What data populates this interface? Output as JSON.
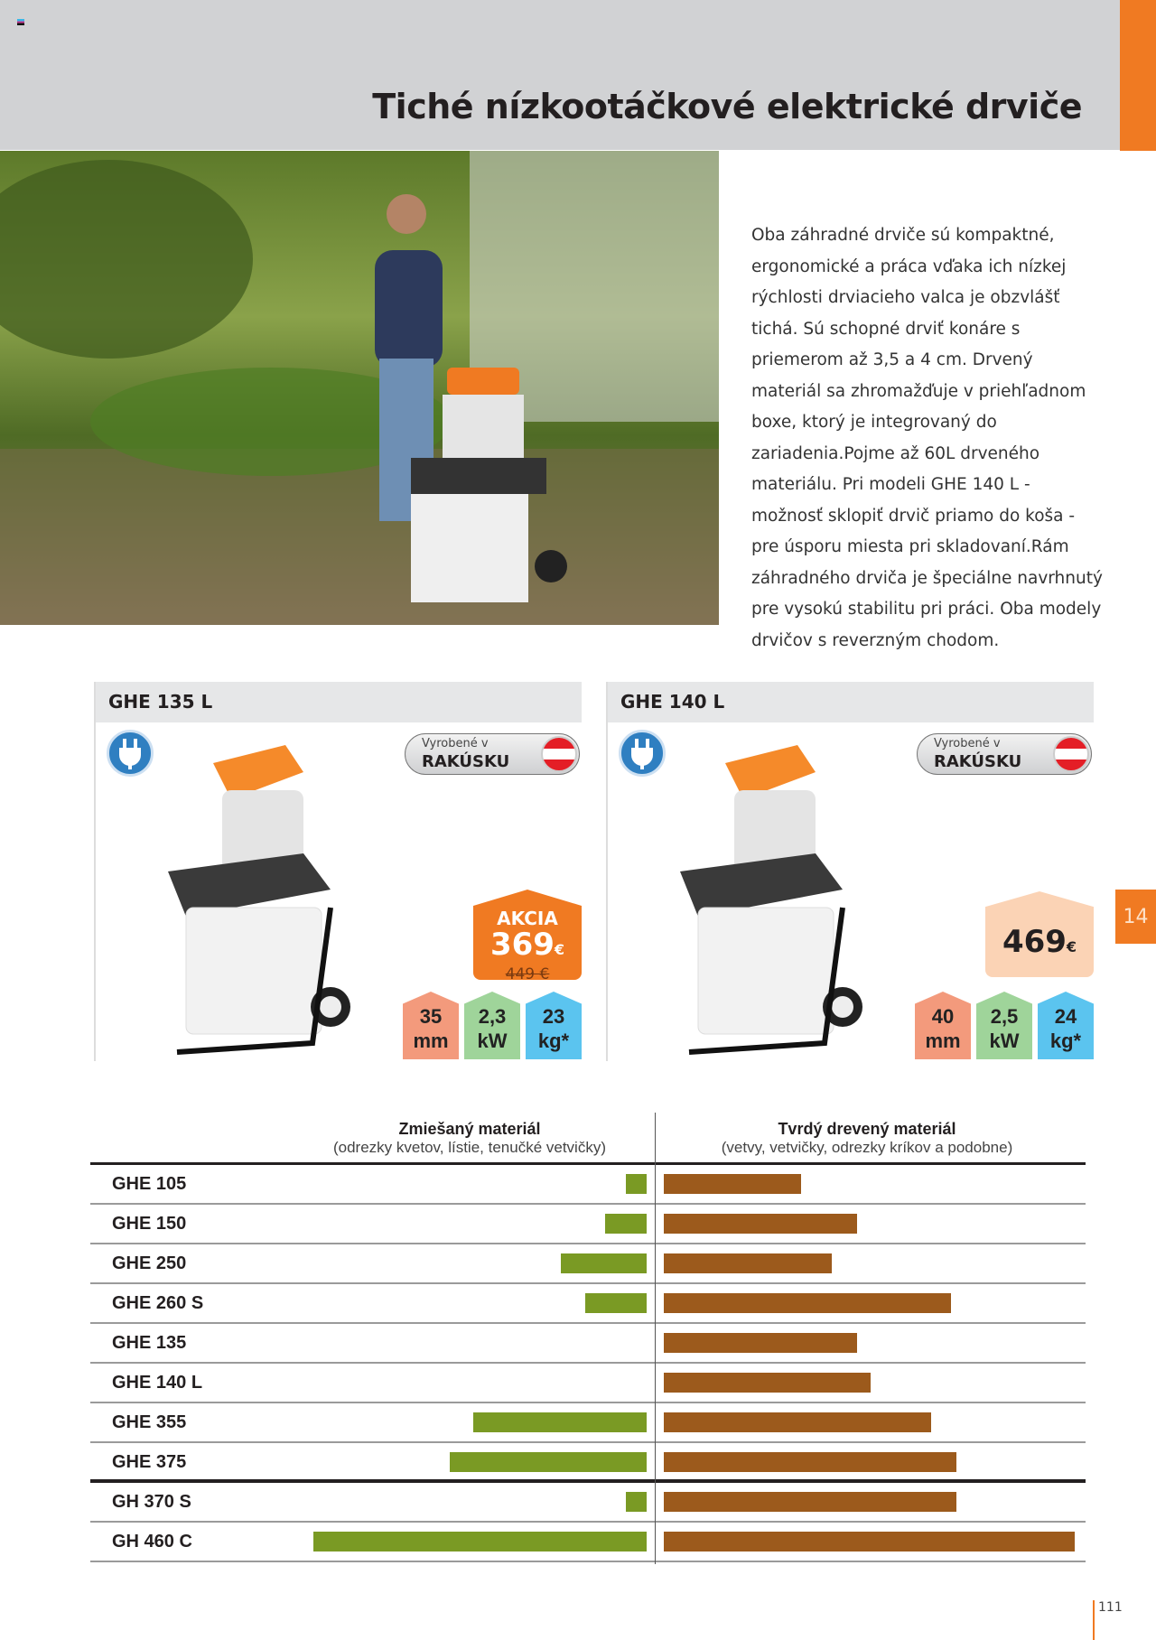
{
  "header": {
    "title": "Tiché nízkootáčkové elektrické drviče"
  },
  "description": "Oba záhradné drviče sú kompaktné, ergonomické a práca vďaka ich nízkej rýchlosti drviacieho valca je obzvlášť tichá. Sú schopné drviť konáre s priemerom až 3,5 a 4 cm. Drvený materiál sa zhromažďuje v priehľadnom boxe, ktorý je integrovaný do zariadenia.Pojme až 60L drveného materiálu. Pri modeli GHE 140 L - možnosť sklopiť drvič priamo do koša - pre úsporu miesta pri skladovaní.Rám záhradného drviča je špeciálne navrhnutý pre vysokú stabilitu pri práci. Oba modely drvičov s reverzným chodom.",
  "products": [
    {
      "name": "GHE 135 L",
      "made_small": "Vyrobené v",
      "made_country": "RAKÚSKU",
      "promo": "AKCIA",
      "price": "369",
      "currency": "€",
      "old_price": "449 €",
      "specs": [
        {
          "value": "35",
          "unit": "mm"
        },
        {
          "value": "2,3",
          "unit": "kW"
        },
        {
          "value": "23",
          "unit": "kg*"
        }
      ]
    },
    {
      "name": "GHE 140 L",
      "made_small": "Vyrobené v",
      "made_country": "RAKÚSKU",
      "price": "469",
      "currency": "€",
      "specs": [
        {
          "value": "40",
          "unit": "mm"
        },
        {
          "value": "2,5",
          "unit": "kW"
        },
        {
          "value": "24",
          "unit": "kg*"
        }
      ]
    }
  ],
  "side_tab": "14",
  "page_number": "111",
  "colors": {
    "accent": "#f07a22",
    "header_bg": "#d1d2d4",
    "mixed_bar": "#7a9a24",
    "wood_bar": "#9c5a1c",
    "spec_mm": "#f39a7c",
    "spec_kw": "#9fd49a",
    "spec_kg": "#5bc4ef",
    "promo": "#f07a22",
    "price_bg": "#fbd3b5"
  },
  "chart_data": {
    "type": "bar",
    "columns": [
      {
        "title": "Zmiešaný materiál",
        "subtitle": "(odrezky kvetov, lístie, tenučké vetvičky)"
      },
      {
        "title": "Tvrdý drevený materiál",
        "subtitle": "(vetvy, vetvičky, odrezky kríkov a podobne)"
      }
    ],
    "categories": [
      "GHE 105",
      "GHE 150",
      "GHE 250",
      "GHE 260 S",
      "GHE 135",
      "GHE 140 L",
      "GHE 355",
      "GHE 375",
      "GH 370 S",
      "GH 460 C"
    ],
    "series": [
      {
        "values": [
          20,
          40,
          82,
          59,
          0,
          0,
          166,
          188,
          20,
          319
        ]
      },
      {
        "values": [
          131,
          185,
          161,
          275,
          185,
          198,
          256,
          280,
          280,
          393
        ]
      }
    ]
  }
}
